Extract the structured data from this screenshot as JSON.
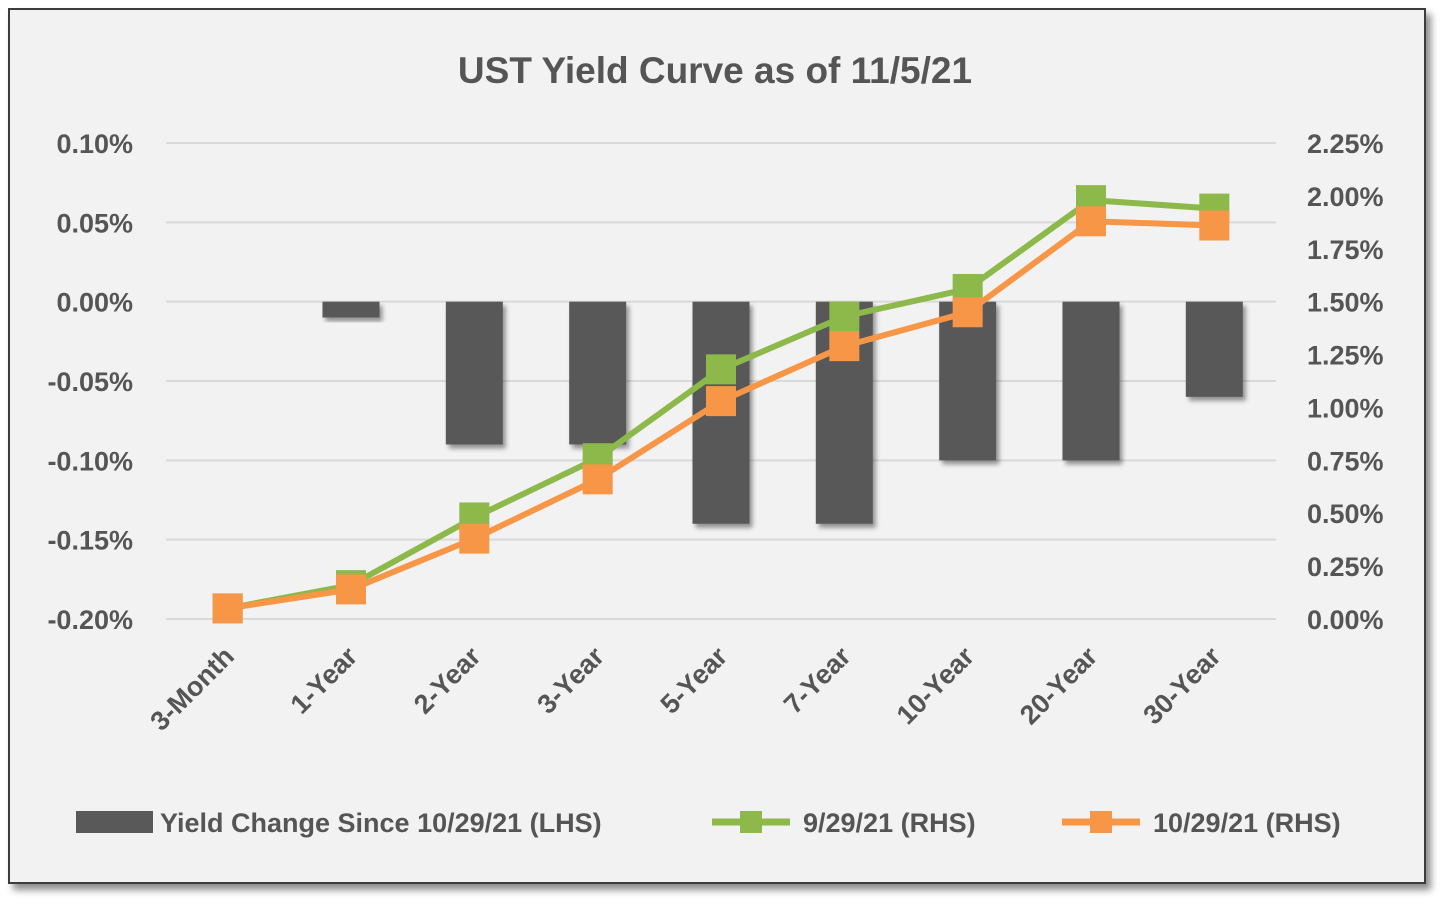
{
  "chart_data": {
    "type": "bar+line",
    "title": "UST Yield Curve as of 11/5/21",
    "categories": [
      "3-Month",
      "1-Year",
      "2-Year",
      "3-Year",
      "5-Year",
      "7-Year",
      "10-Year",
      "20-Year",
      "30-Year"
    ],
    "left_axis": {
      "ylim": [
        -0.2,
        0.1
      ],
      "ticks": [
        0.1,
        0.05,
        0.0,
        -0.05,
        -0.1,
        -0.15,
        -0.2
      ],
      "tick_labels": [
        "0.10%",
        "0.05%",
        "0.00%",
        "-0.05%",
        "-0.10%",
        "-0.15%",
        "-0.20%"
      ]
    },
    "right_axis": {
      "ylim": [
        0.0,
        2.25
      ],
      "ticks": [
        2.25,
        2.0,
        1.75,
        1.5,
        1.25,
        1.0,
        0.75,
        0.5,
        0.25,
        0.0
      ],
      "tick_labels": [
        "2.25%",
        "2.00%",
        "1.75%",
        "1.50%",
        "1.25%",
        "1.00%",
        "0.75%",
        "0.50%",
        "0.25%",
        "0.00%"
      ]
    },
    "grid": true,
    "legend_position": "bottom",
    "series": [
      {
        "name": "Yield Change Since 10/29/21 (LHS)",
        "type": "bar",
        "axis": "left",
        "color": "#595959",
        "values": [
          0.0,
          -0.01,
          -0.09,
          -0.09,
          -0.14,
          -0.14,
          -0.1,
          -0.1,
          -0.06
        ]
      },
      {
        "name": "9/29/21 (RHS)",
        "type": "line",
        "axis": "right",
        "color": "#8db84a",
        "values": [
          0.05,
          0.16,
          0.48,
          0.76,
          1.18,
          1.43,
          1.56,
          1.98,
          1.94
        ]
      },
      {
        "name": "10/29/21 (RHS)",
        "type": "line",
        "axis": "right",
        "color": "#f79646",
        "values": [
          0.05,
          0.14,
          0.38,
          0.66,
          1.03,
          1.29,
          1.45,
          1.88,
          1.86
        ]
      }
    ]
  }
}
